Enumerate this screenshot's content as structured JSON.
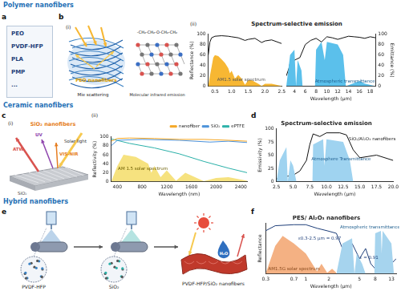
{
  "panels": {
    "sections": [
      "Polymer nanofibers",
      "Ceramic nanofibers",
      "Hybrid nanofibers"
    ],
    "labels": [
      "a",
      "b",
      "c",
      "d",
      "e",
      "f"
    ],
    "a_items": [
      "PEO",
      "PVDF-HFP",
      "PLA",
      "PMP",
      "..."
    ],
    "b_i": {
      "label": "(i)",
      "fiber": "PEO nanofibers",
      "scattering": "Mie scattering",
      "emission": "Molecular infrared emission",
      "formula": "-CH₂-CH₂-O-CH₂-CH₂"
    },
    "b_ii_label": "(ii)",
    "c_i": {
      "label": "(i)",
      "title": "SiO₂ nanofibers",
      "atw": "ATW",
      "uv": "UV",
      "visnir": "VIS-NIR",
      "solar": "Solar light",
      "substrate": "SiO₂"
    },
    "c_ii_label": "(ii)",
    "e": {
      "polymer": "PVDF-HFP",
      "ceramic": "SiO₂",
      "product": "PVDF-HFP/SiO₂ nanofibers",
      "water": "H₂O"
    }
  },
  "chart_data": [
    {
      "type": "line",
      "title": "Spectrum-selective emission",
      "ylabel": "Reflectance (%)",
      "xlim": [
        0.3,
        2.5
      ],
      "xticks": [
        0.5,
        {
          "value": 1,
          "label": "1.0"
        },
        1.5,
        {
          "value": 2,
          "label": "2.0"
        },
        2.5
      ],
      "ylim": [
        0,
        100
      ],
      "yticks": [
        0,
        20,
        40,
        60,
        80,
        100
      ],
      "grid": false,
      "annotations": [
        "AM1.5 solar spectrum"
      ],
      "series": [
        {
          "type": "area",
          "color": "#f7b733",
          "x": [
            0.3,
            0.35,
            0.45,
            0.5,
            0.6,
            0.7,
            0.8,
            0.9,
            0.95,
            1.0,
            1.1,
            1.2,
            1.3,
            1.4,
            1.5,
            1.6,
            1.8,
            1.9,
            2.0,
            2.2,
            2.5
          ],
          "values": [
            0,
            20,
            55,
            60,
            58,
            52,
            45,
            35,
            25,
            30,
            15,
            22,
            15,
            3,
            12,
            12,
            5,
            1,
            5,
            5,
            1
          ]
        },
        {
          "type": "line",
          "color": "#111111",
          "x": [
            0.3,
            0.35,
            0.4,
            0.5,
            0.7,
            0.9,
            1.0,
            1.2,
            1.4,
            1.5,
            1.7,
            1.9,
            2.0,
            2.2,
            2.5
          ],
          "values": [
            60,
            85,
            93,
            96,
            97,
            96,
            95,
            93,
            88,
            90,
            92,
            84,
            87,
            89,
            82
          ]
        }
      ]
    },
    {
      "type": "line",
      "xlabel": "Wavelength (µm)",
      "ylabel": "Emittance (%)",
      "xlim": [
        2.5,
        19
      ],
      "xticks": [
        4,
        6,
        8,
        10,
        12,
        14,
        16,
        18
      ],
      "ylim": [
        0,
        100
      ],
      "yticks": [
        0,
        20,
        40,
        60,
        80,
        100
      ],
      "grid": false,
      "annotations": [
        "Atmospheric transmittance"
      ],
      "series": [
        {
          "type": "area",
          "color": "#5bc0eb",
          "x": [
            2.5,
            3.2,
            4,
            4.3,
            4.6,
            5.3,
            5.5,
            7.8,
            8,
            9,
            9.6,
            10,
            12,
            13,
            13.5,
            16,
            17,
            19
          ],
          "values": [
            0,
            60,
            70,
            0,
            50,
            30,
            0,
            0,
            70,
            85,
            50,
            85,
            80,
            60,
            0,
            10,
            5,
            0
          ]
        },
        {
          "type": "line",
          "color": "#111111",
          "x": [
            2.5,
            3,
            3.5,
            4,
            5,
            6,
            7,
            8,
            9,
            10,
            11,
            12,
            13,
            14,
            15,
            16,
            17,
            18,
            19
          ],
          "values": [
            20,
            35,
            60,
            50,
            55,
            80,
            88,
            92,
            85,
            95,
            93,
            90,
            93,
            96,
            95,
            94,
            92,
            95,
            93
          ]
        }
      ]
    },
    {
      "type": "line",
      "xlabel": "Wavelength (nm)",
      "ylabel": "Reflectivity (%)",
      "xlim": [
        300,
        2500
      ],
      "xticks": [
        400,
        800,
        1200,
        1600,
        2000,
        2400
      ],
      "ylim": [
        0,
        100
      ],
      "yticks": [
        0,
        20,
        40,
        60,
        80,
        100
      ],
      "grid": false,
      "legend": "top-right",
      "annotations": [
        "AM 1.5 solar spectrum"
      ],
      "series": [
        {
          "type": "area",
          "color": "#f6e27f",
          "x": [
            300,
            400,
            500,
            700,
            900,
            950,
            1000,
            1100,
            1200,
            1350,
            1500,
            1800,
            2000,
            2200,
            2500
          ],
          "values": [
            0,
            35,
            60,
            55,
            40,
            20,
            35,
            10,
            25,
            2,
            20,
            1,
            8,
            10,
            2
          ]
        },
        {
          "type": "line",
          "name": "nanofiber",
          "color": "#f5a623",
          "x": [
            300,
            400,
            600,
            1000,
            1400,
            1800,
            2200,
            2500
          ],
          "values": [
            90,
            96,
            97,
            96,
            94,
            94,
            92,
            90
          ]
        },
        {
          "type": "line",
          "name": "SiO₂",
          "color": "#4a90d9",
          "x": [
            300,
            400,
            800,
            1400,
            1900,
            2200,
            2500
          ],
          "values": [
            80,
            92,
            94,
            92,
            88,
            90,
            87
          ]
        },
        {
          "type": "line",
          "name": "ePTFE",
          "color": "#2ab0a8",
          "x": [
            300,
            600,
            1000,
            1400,
            1800,
            2200,
            2500
          ],
          "values": [
            95,
            85,
            75,
            62,
            45,
            30,
            20
          ]
        }
      ]
    },
    {
      "type": "line",
      "title": "Spectrum-selective emission",
      "xlabel": "Wavelength (µm)",
      "ylabel": "Emissivity (%)",
      "xlim": [
        2.5,
        20
      ],
      "xticks": [
        2.5,
        {
          "value": 5,
          "label": "5.0"
        },
        7.5,
        {
          "value": 10,
          "label": "10.0"
        },
        12.5,
        {
          "value": 15,
          "label": "15.0"
        },
        17.5,
        {
          "value": 20,
          "label": "20.0"
        }
      ],
      "ylim": [
        0,
        100
      ],
      "yticks": [
        0,
        25,
        50,
        75,
        100
      ],
      "grid": false,
      "annotations": [
        "Atmosphere Transmittance",
        "SiO₂/Al₂O₃ nanofibers"
      ],
      "series": [
        {
          "type": "area",
          "color": "#9fd3f0",
          "x": [
            2.5,
            3,
            4,
            4.2,
            4.6,
            5,
            5.5,
            7.9,
            8,
            9.5,
            9.7,
            10,
            12.5,
            13.5,
            14,
            20
          ],
          "values": [
            0,
            40,
            65,
            0,
            40,
            30,
            0,
            0,
            70,
            80,
            30,
            80,
            75,
            40,
            0,
            0
          ]
        },
        {
          "type": "line",
          "color": "#111111",
          "x": [
            2.5,
            3,
            5,
            6,
            7,
            7.5,
            8,
            9,
            10,
            12,
            13,
            14,
            15,
            17.5,
            20
          ],
          "values": [
            5,
            8,
            12,
            20,
            40,
            70,
            90,
            85,
            92,
            92,
            88,
            60,
            45,
            50,
            40
          ]
        }
      ]
    },
    {
      "type": "line",
      "title": "PES/ Al₂O₃ nanofibers",
      "xlabel": "Wavelength (µm)",
      "ylabel": "Reflectance",
      "log": "x",
      "xlim": [
        0.3,
        15
      ],
      "xticks": [
        0.3,
        0.7,
        1,
        2,
        5,
        8,
        13
      ],
      "ylim": [
        0,
        1
      ],
      "yticks": [
        0,
        0.5,
        1
      ],
      "tick_labels": "x",
      "grid": false,
      "annotations": [
        "ε0.3-2.5 µm = 0.97",
        "AM1.5G solar spectrum",
        "Atmospheric transmittance",
        "ε = 0.91"
      ],
      "series": [
        {
          "type": "area",
          "color": "#f4b183",
          "x": [
            0.3,
            0.4,
            0.5,
            0.7,
            1,
            1.4,
            1.6,
            1.9,
            2.2,
            2.5
          ],
          "values": [
            0,
            0.55,
            0.75,
            0.6,
            0.4,
            0.05,
            0.2,
            0.02,
            0.1,
            0.02
          ]
        },
        {
          "type": "area",
          "color": "#a6d4ee",
          "x": [
            2.5,
            3,
            4,
            4.3,
            4.6,
            5.4,
            6,
            7.8,
            8,
            9.5,
            9.7,
            10,
            13,
            14,
            15
          ],
          "values": [
            0,
            0.6,
            0.7,
            0,
            0.4,
            0.2,
            0,
            0,
            0.8,
            0.85,
            0.4,
            0.85,
            0.6,
            0,
            0
          ]
        },
        {
          "type": "line",
          "color": "#1f3f7a",
          "x": [
            0.3,
            0.4,
            0.7,
            1,
            1.4,
            1.9,
            2.5,
            3,
            4,
            5,
            6,
            7,
            8,
            9,
            10,
            12,
            13,
            15
          ],
          "values": [
            0.85,
            0.95,
            0.97,
            0.97,
            0.9,
            0.85,
            0.8,
            0.5,
            0.6,
            0.3,
            0.5,
            0.2,
            0.1,
            0.05,
            0.1,
            0.08,
            0.2,
            0.3
          ]
        }
      ]
    }
  ]
}
